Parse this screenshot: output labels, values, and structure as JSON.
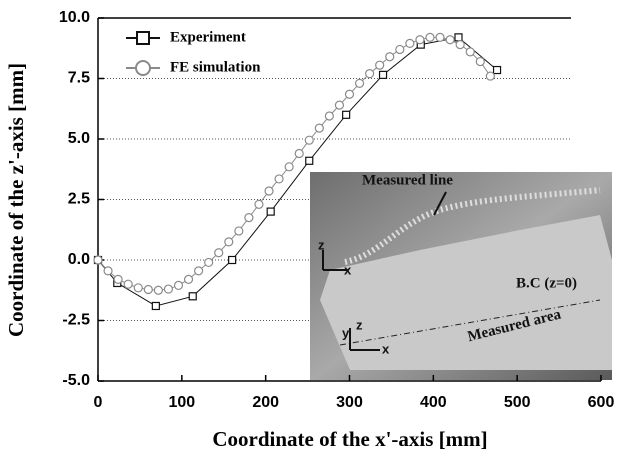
{
  "chart_data": {
    "type": "line",
    "xlabel": "Coordinate of the x'-axis [mm]",
    "ylabel": "Coordinate of the z'-axis  [mm]",
    "xlim": [
      0,
      600
    ],
    "xticks": [
      0,
      100,
      200,
      300,
      400,
      500,
      600
    ],
    "ylim": [
      -5,
      10
    ],
    "yticks": [
      {
        "value": -5,
        "label": "-5.0"
      },
      {
        "value": -2.5,
        "label": "-2.5"
      },
      {
        "value": 0,
        "label": "0.0"
      },
      {
        "value": 2.5,
        "label": "2.5"
      },
      {
        "value": 5,
        "label": "5.0"
      },
      {
        "value": 7.5,
        "label": "7.5"
      },
      {
        "value": 10,
        "label": "10.0"
      }
    ],
    "grid": true,
    "legend": "upper left",
    "series": [
      {
        "name": "Experiment",
        "color": "#111111",
        "marker": "square",
        "x": [
          0,
          23,
          69,
          113,
          160,
          206,
          252,
          296,
          340,
          385,
          430,
          476
        ],
        "values": [
          0.0,
          -0.95,
          -1.9,
          -1.5,
          0.0,
          2.0,
          4.1,
          6.0,
          7.65,
          8.9,
          9.2,
          7.85
        ]
      },
      {
        "name": "FE simulation",
        "color": "#8a8a8a",
        "marker": "circle",
        "x": [
          0,
          12,
          24,
          36,
          48,
          60,
          72,
          84,
          96,
          108,
          120,
          132,
          144,
          156,
          168,
          180,
          192,
          204,
          216,
          228,
          240,
          252,
          264,
          276,
          288,
          300,
          312,
          324,
          336,
          348,
          360,
          372,
          384,
          396,
          408,
          420,
          432,
          444,
          456,
          468
        ],
        "values": [
          0.0,
          -0.45,
          -0.8,
          -1.0,
          -1.15,
          -1.22,
          -1.25,
          -1.2,
          -1.05,
          -0.8,
          -0.45,
          -0.1,
          0.3,
          0.75,
          1.2,
          1.75,
          2.3,
          2.85,
          3.35,
          3.85,
          4.4,
          4.95,
          5.45,
          5.95,
          6.4,
          6.85,
          7.3,
          7.7,
          8.05,
          8.4,
          8.7,
          8.95,
          9.1,
          9.2,
          9.2,
          9.1,
          8.9,
          8.6,
          8.2,
          7.6
        ]
      }
    ],
    "inset_labels": [
      "Measured line",
      "z",
      "x",
      "B.C (z=0)",
      "Measured area",
      "y",
      "z",
      "x"
    ]
  }
}
